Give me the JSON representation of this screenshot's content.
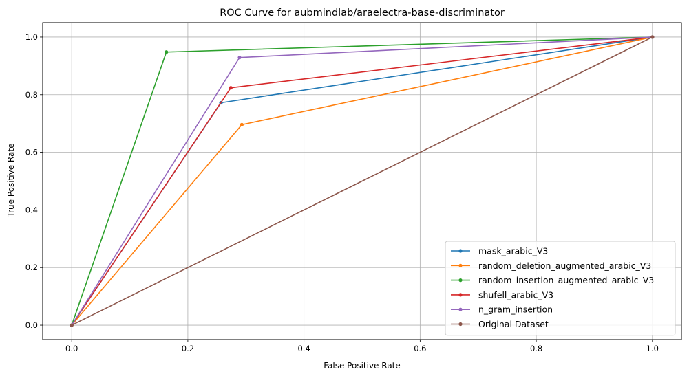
{
  "chart_data": {
    "type": "line",
    "title": "ROC Curve for aubmindlab/araelectra-base-discriminator",
    "xlabel": "False Positive Rate",
    "ylabel": "True Positive Rate",
    "xlim": [
      -0.05,
      1.05
    ],
    "ylim": [
      -0.05,
      1.05
    ],
    "xticks": [
      0.0,
      0.2,
      0.4,
      0.6,
      0.8,
      1.0
    ],
    "yticks": [
      0.0,
      0.2,
      0.4,
      0.6,
      0.8,
      1.0
    ],
    "xtick_labels": [
      "0.0",
      "0.2",
      "0.4",
      "0.6",
      "0.8",
      "1.0"
    ],
    "ytick_labels": [
      "0.0",
      "0.2",
      "0.4",
      "0.6",
      "0.8",
      "1.0"
    ],
    "grid": true,
    "legend_position": "lower-right",
    "series": [
      {
        "name": "mask_arabic_V3",
        "color": "#1f77b4",
        "x": [
          0.0,
          0.257,
          1.0
        ],
        "y": [
          0.0,
          0.772,
          1.0
        ]
      },
      {
        "name": "random_deletion_augmented_arabic_V3",
        "color": "#ff7f0e",
        "x": [
          0.0,
          0.293,
          1.0
        ],
        "y": [
          0.0,
          0.696,
          1.0
        ]
      },
      {
        "name": "random_insertion_augmented_arabic_V3",
        "color": "#2ca02c",
        "x": [
          0.0,
          0.163,
          1.0
        ],
        "y": [
          0.0,
          0.948,
          1.0
        ]
      },
      {
        "name": "shufell_arabic_V3",
        "color": "#d62728",
        "x": [
          0.0,
          0.274,
          1.0
        ],
        "y": [
          0.0,
          0.824,
          1.0
        ]
      },
      {
        "name": "n_gram_insertion",
        "color": "#9467bd",
        "x": [
          0.0,
          0.289,
          1.0
        ],
        "y": [
          0.0,
          0.929,
          1.0
        ]
      },
      {
        "name": "Original Dataset",
        "color": "#8c564b",
        "x": [
          0.0,
          1.0
        ],
        "y": [
          0.0,
          1.0
        ]
      }
    ]
  }
}
